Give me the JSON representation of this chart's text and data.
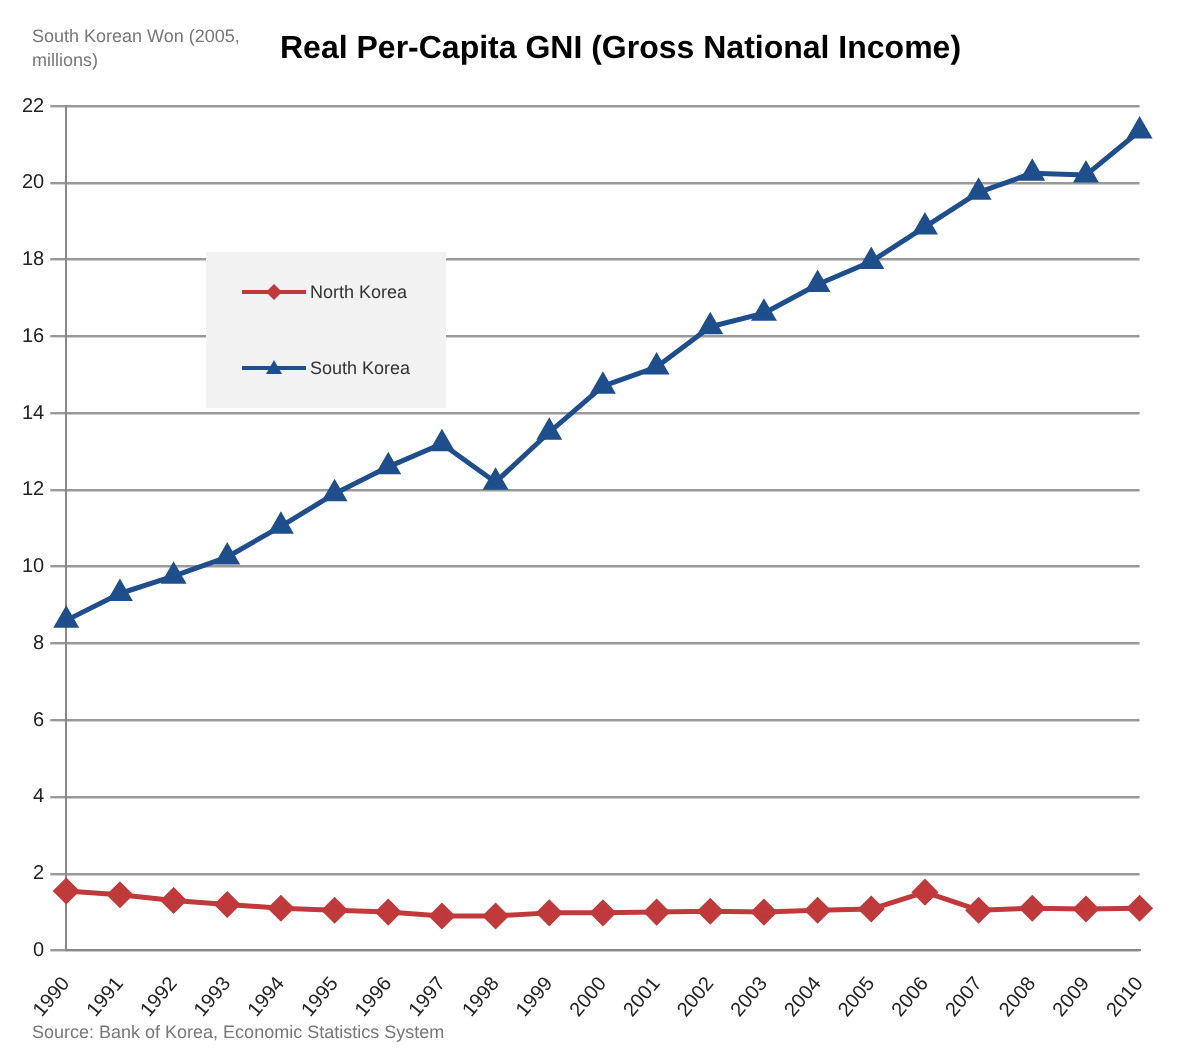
{
  "chart_data": {
    "type": "line",
    "title": "Real Per-Capita GNI (Gross National Income)",
    "ylabel": "South Korean Won (2005, millions)",
    "categories": [
      "1990",
      "1991",
      "1992",
      "1993",
      "1994",
      "1995",
      "1996",
      "1997",
      "1998",
      "1999",
      "2000",
      "2001",
      "2002",
      "2003",
      "2004",
      "2005",
      "2006",
      "2007",
      "2008",
      "2009",
      "2010"
    ],
    "series": [
      {
        "name": "North Korea",
        "color": "#c0393b",
        "marker": "diamond",
        "values": [
          1.55,
          1.45,
          1.3,
          1.2,
          1.1,
          1.05,
          1.0,
          0.9,
          0.9,
          0.98,
          0.98,
          1.0,
          1.02,
          1.0,
          1.05,
          1.08,
          1.52,
          1.05,
          1.1,
          1.08,
          1.1
        ]
      },
      {
        "name": "South Korea",
        "color": "#1f4e8c",
        "marker": "triangle",
        "values": [
          8.6,
          9.3,
          9.75,
          10.25,
          11.05,
          11.9,
          12.6,
          13.2,
          12.2,
          13.5,
          14.7,
          15.2,
          16.25,
          16.6,
          17.35,
          17.95,
          18.85,
          19.75,
          20.25,
          20.2,
          21.35
        ]
      }
    ],
    "ylim": [
      0,
      22
    ],
    "yticks": [
      0,
      2,
      4,
      6,
      8,
      10,
      12,
      14,
      16,
      18,
      20,
      22
    ],
    "grid": "y",
    "legend": "top left",
    "line_style": "solid",
    "annotations": [
      "Source: Bank of Korea, Economic Statistics System"
    ]
  }
}
